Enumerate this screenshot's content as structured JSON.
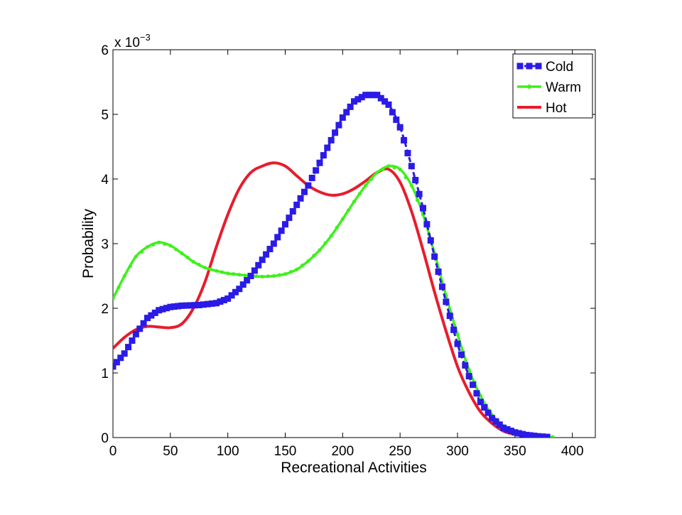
{
  "chart_data": {
    "type": "line",
    "xlabel": "Recreational Activities",
    "ylabel": "Probability",
    "y_exponent_label": "x 10",
    "y_exponent_power": "−3",
    "xlim": [
      0,
      420
    ],
    "ylim": [
      0,
      6
    ],
    "y_scale_factor": 0.001,
    "xticks": [
      0,
      50,
      100,
      150,
      200,
      250,
      300,
      350,
      400
    ],
    "yticks": [
      0,
      1,
      2,
      3,
      4,
      5,
      6
    ],
    "grid": false,
    "legend_position": "top-right",
    "series": [
      {
        "name": "Cold",
        "color": "#2b1be6",
        "style": "dashed-square-markers",
        "points": [
          [
            0,
            1.1
          ],
          [
            10,
            1.3
          ],
          [
            20,
            1.6
          ],
          [
            30,
            1.85
          ],
          [
            40,
            1.97
          ],
          [
            50,
            2.02
          ],
          [
            60,
            2.04
          ],
          [
            75,
            2.05
          ],
          [
            90,
            2.08
          ],
          [
            100,
            2.15
          ],
          [
            110,
            2.3
          ],
          [
            120,
            2.5
          ],
          [
            130,
            2.75
          ],
          [
            140,
            3.0
          ],
          [
            150,
            3.3
          ],
          [
            160,
            3.6
          ],
          [
            170,
            3.9
          ],
          [
            180,
            4.25
          ],
          [
            190,
            4.6
          ],
          [
            200,
            4.95
          ],
          [
            210,
            5.2
          ],
          [
            220,
            5.3
          ],
          [
            230,
            5.3
          ],
          [
            240,
            5.15
          ],
          [
            250,
            4.8
          ],
          [
            260,
            4.2
          ],
          [
            270,
            3.55
          ],
          [
            280,
            2.8
          ],
          [
            290,
            2.1
          ],
          [
            300,
            1.45
          ],
          [
            310,
            0.95
          ],
          [
            320,
            0.55
          ],
          [
            330,
            0.3
          ],
          [
            340,
            0.15
          ],
          [
            350,
            0.08
          ],
          [
            360,
            0.04
          ],
          [
            370,
            0.02
          ],
          [
            378,
            0.01
          ]
        ]
      },
      {
        "name": "Warm",
        "color": "#3ff01c",
        "style": "solid-dot-markers",
        "points": [
          [
            0,
            2.15
          ],
          [
            10,
            2.5
          ],
          [
            20,
            2.8
          ],
          [
            30,
            2.95
          ],
          [
            40,
            3.02
          ],
          [
            50,
            2.97
          ],
          [
            60,
            2.85
          ],
          [
            70,
            2.72
          ],
          [
            80,
            2.63
          ],
          [
            90,
            2.58
          ],
          [
            100,
            2.54
          ],
          [
            110,
            2.52
          ],
          [
            120,
            2.5
          ],
          [
            130,
            2.49
          ],
          [
            140,
            2.5
          ],
          [
            150,
            2.53
          ],
          [
            160,
            2.6
          ],
          [
            170,
            2.73
          ],
          [
            180,
            2.9
          ],
          [
            190,
            3.12
          ],
          [
            200,
            3.38
          ],
          [
            210,
            3.65
          ],
          [
            220,
            3.9
          ],
          [
            230,
            4.1
          ],
          [
            240,
            4.2
          ],
          [
            250,
            4.15
          ],
          [
            260,
            3.9
          ],
          [
            270,
            3.45
          ],
          [
            280,
            2.85
          ],
          [
            290,
            2.2
          ],
          [
            300,
            1.6
          ],
          [
            310,
            1.05
          ],
          [
            320,
            0.65
          ],
          [
            330,
            0.35
          ],
          [
            340,
            0.18
          ],
          [
            350,
            0.08
          ],
          [
            360,
            0.04
          ],
          [
            370,
            0.02
          ],
          [
            383,
            0.01
          ]
        ]
      },
      {
        "name": "Hot",
        "color": "#e81c2c",
        "style": "solid",
        "points": [
          [
            0,
            1.38
          ],
          [
            10,
            1.55
          ],
          [
            20,
            1.67
          ],
          [
            30,
            1.72
          ],
          [
            40,
            1.71
          ],
          [
            50,
            1.7
          ],
          [
            60,
            1.76
          ],
          [
            70,
            2.0
          ],
          [
            80,
            2.4
          ],
          [
            90,
            2.95
          ],
          [
            100,
            3.45
          ],
          [
            110,
            3.85
          ],
          [
            120,
            4.1
          ],
          [
            130,
            4.2
          ],
          [
            140,
            4.25
          ],
          [
            150,
            4.2
          ],
          [
            160,
            4.05
          ],
          [
            170,
            3.9
          ],
          [
            180,
            3.8
          ],
          [
            190,
            3.75
          ],
          [
            200,
            3.77
          ],
          [
            210,
            3.85
          ],
          [
            220,
            3.97
          ],
          [
            230,
            4.1
          ],
          [
            240,
            4.15
          ],
          [
            250,
            3.95
          ],
          [
            260,
            3.5
          ],
          [
            270,
            2.9
          ],
          [
            280,
            2.25
          ],
          [
            290,
            1.65
          ],
          [
            300,
            1.1
          ],
          [
            310,
            0.7
          ],
          [
            320,
            0.4
          ],
          [
            330,
            0.22
          ],
          [
            340,
            0.1
          ],
          [
            350,
            0.05
          ],
          [
            360,
            0.02
          ],
          [
            368,
            0.01
          ]
        ]
      }
    ]
  }
}
